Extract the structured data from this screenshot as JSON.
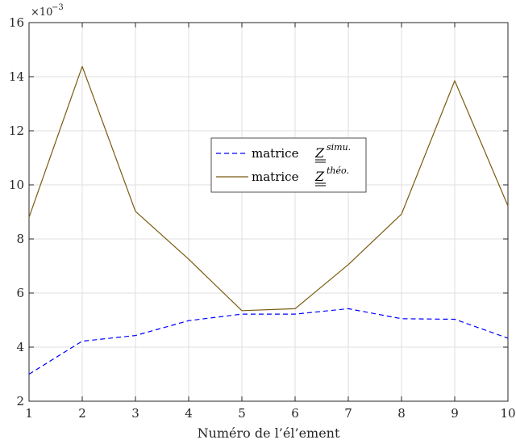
{
  "chart_data": {
    "type": "line",
    "title": "",
    "xlabel": "Numéro de l’él’ement",
    "ylabel": "",
    "xlim": [
      1,
      10
    ],
    "ylim": [
      2,
      16
    ],
    "y_scale_label": "×10",
    "y_scale_exponent": "−3",
    "x_ticks": [
      "1",
      "2",
      "3",
      "4",
      "5",
      "6",
      "7",
      "8",
      "9",
      "10"
    ],
    "y_ticks": [
      "2",
      "4",
      "6",
      "8",
      "10",
      "12",
      "14",
      "16"
    ],
    "grid": true,
    "legend_position": "center",
    "x": [
      1,
      2,
      3,
      4,
      5,
      6,
      7,
      8,
      9,
      10
    ],
    "series": [
      {
        "name": "matrice Z simu.",
        "legend_text": "matrice ",
        "legend_symbol": "Z",
        "legend_sup": "simu.",
        "color": "#0000ff",
        "style": "dashed",
        "values": [
          3.0,
          4.22,
          4.43,
          4.98,
          5.22,
          5.22,
          5.42,
          5.05,
          5.03,
          4.33
        ]
      },
      {
        "name": "matrice Z théo.",
        "legend_text": "matrice ",
        "legend_symbol": "Z",
        "legend_sup": "théo.",
        "color": "#7a5a10",
        "style": "solid",
        "values": [
          8.8,
          14.38,
          9.02,
          7.25,
          5.35,
          5.42,
          7.05,
          8.92,
          13.85,
          9.22
        ]
      }
    ]
  }
}
